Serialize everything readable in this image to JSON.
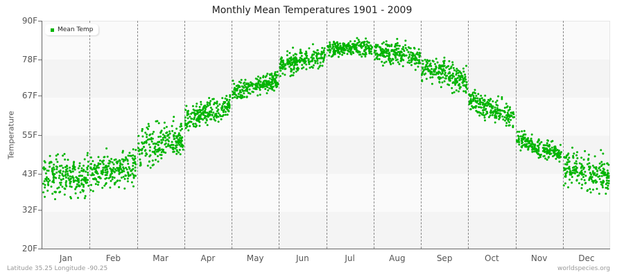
{
  "chart_data": {
    "type": "scatter",
    "title": "Monthly Mean Temperatures 1901 - 2009",
    "xlabel": "",
    "ylabel": "Temperature",
    "ylim": [
      20,
      90
    ],
    "y_ticks": [
      "90F",
      "78F",
      "67F",
      "55F",
      "43F",
      "32F",
      "20F"
    ],
    "y_tick_values": [
      90,
      78,
      67,
      55,
      43,
      32,
      20
    ],
    "categories": [
      "Jan",
      "Feb",
      "Mar",
      "Apr",
      "May",
      "Jun",
      "Jul",
      "Aug",
      "Sep",
      "Oct",
      "Nov",
      "Dec"
    ],
    "legend": {
      "position": "top-left",
      "entries": [
        "Mean Temp"
      ]
    },
    "grid": {
      "horizontal_bands": true,
      "vertical_dashed_month_separators": true
    },
    "series": [
      {
        "name": "Mean Temp",
        "color": "#00b400",
        "points_per_month": 109,
        "monthly_center": [
          42,
          44,
          52,
          62,
          70,
          78,
          82,
          80,
          74,
          63,
          51,
          43
        ],
        "monthly_min": [
          28,
          34,
          40,
          55,
          63,
          73,
          78,
          74,
          65,
          56,
          46,
          31
        ],
        "monthly_max": [
          51,
          54,
          63,
          68,
          75,
          85,
          87,
          86,
          81,
          69,
          57,
          52
        ]
      }
    ]
  },
  "footer": {
    "location": "Latitude 35.25 Longitude -90.25",
    "source": "worldspecies.org"
  },
  "colors": {
    "point": "#00b400",
    "band_light": "#fafafa",
    "band_dark": "#f4f4f4",
    "axis": "#666666"
  }
}
